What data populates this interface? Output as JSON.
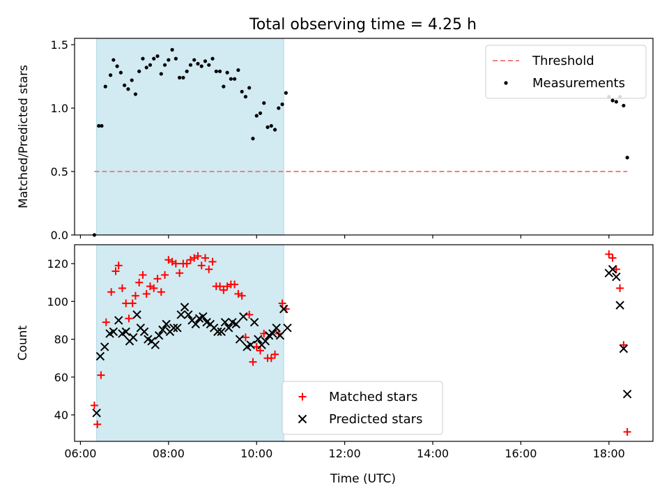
{
  "chart_data": {
    "title": "Total observing time = 4.25 h",
    "xlabel": "Time (UTC)",
    "x_ticks": [
      "06:00",
      "08:00",
      "10:00",
      "12:00",
      "14:00",
      "16:00",
      "18:00"
    ],
    "xlim": [
      "05:52",
      "19:00"
    ],
    "shaded_interval": {
      "start": "06:22",
      "end": "10:37",
      "color": "#add8e6"
    },
    "panels": [
      {
        "type": "scatter",
        "ylabel": "Matched/Predicted stars",
        "ylim": [
          0,
          1.55
        ],
        "y_ticks": [
          "0.0",
          "0.5",
          "1.0",
          "1.5"
        ],
        "legend_position": "top-right",
        "threshold": {
          "name": "Threshold",
          "value": 0.5,
          "x_start": "06:19",
          "x_end": "18:25",
          "color": "#f08080",
          "style": "dashed"
        },
        "series": [
          {
            "name": "Measurements",
            "color": "#000000",
            "marker": "dot",
            "points": [
              [
                "06:19",
                0.0
              ],
              [
                "06:25",
                0.86
              ],
              [
                "06:29",
                0.86
              ],
              [
                "06:34",
                1.17
              ],
              [
                "06:41",
                1.26
              ],
              [
                "06:45",
                1.38
              ],
              [
                "06:50",
                1.33
              ],
              [
                "06:55",
                1.28
              ],
              [
                "07:00",
                1.18
              ],
              [
                "07:05",
                1.15
              ],
              [
                "07:10",
                1.22
              ],
              [
                "07:15",
                1.11
              ],
              [
                "07:20",
                1.29
              ],
              [
                "07:25",
                1.39
              ],
              [
                "07:30",
                1.32
              ],
              [
                "07:35",
                1.34
              ],
              [
                "07:40",
                1.39
              ],
              [
                "07:45",
                1.41
              ],
              [
                "07:50",
                1.27
              ],
              [
                "07:55",
                1.34
              ],
              [
                "08:00",
                1.38
              ],
              [
                "08:05",
                1.46
              ],
              [
                "08:10",
                1.39
              ],
              [
                "08:15",
                1.24
              ],
              [
                "08:20",
                1.24
              ],
              [
                "08:25",
                1.29
              ],
              [
                "08:30",
                1.34
              ],
              [
                "08:35",
                1.38
              ],
              [
                "08:40",
                1.35
              ],
              [
                "08:45",
                1.33
              ],
              [
                "08:50",
                1.37
              ],
              [
                "08:55",
                1.34
              ],
              [
                "09:00",
                1.39
              ],
              [
                "09:05",
                1.29
              ],
              [
                "09:10",
                1.29
              ],
              [
                "09:15",
                1.17
              ],
              [
                "09:20",
                1.28
              ],
              [
                "09:25",
                1.23
              ],
              [
                "09:30",
                1.23
              ],
              [
                "09:35",
                1.3
              ],
              [
                "09:40",
                1.13
              ],
              [
                "09:45",
                1.09
              ],
              [
                "09:50",
                1.16
              ],
              [
                "09:55",
                0.76
              ],
              [
                "10:00",
                0.94
              ],
              [
                "10:05",
                0.96
              ],
              [
                "10:10",
                1.04
              ],
              [
                "10:15",
                0.85
              ],
              [
                "10:20",
                0.86
              ],
              [
                "10:25",
                0.83
              ],
              [
                "10:30",
                1.0
              ],
              [
                "10:35",
                1.03
              ],
              [
                "10:40",
                1.12
              ],
              [
                "18:00",
                1.09
              ],
              [
                "18:05",
                1.06
              ],
              [
                "18:10",
                1.05
              ],
              [
                "18:15",
                1.09
              ],
              [
                "18:20",
                1.02
              ],
              [
                "18:25",
                0.61
              ]
            ]
          }
        ]
      },
      {
        "type": "scatter",
        "ylabel": "Count",
        "ylim": [
          26,
          130
        ],
        "y_ticks": [
          "40",
          "60",
          "80",
          "100",
          "120"
        ],
        "legend_position": "lower-center",
        "series": [
          {
            "name": "Matched stars",
            "color": "#ff0000",
            "marker": "plus",
            "points": [
              [
                "06:19",
                45
              ],
              [
                "06:23",
                35
              ],
              [
                "06:28",
                61
              ],
              [
                "06:35",
                89
              ],
              [
                "06:42",
                105
              ],
              [
                "06:48",
                116
              ],
              [
                "06:52",
                119
              ],
              [
                "06:57",
                107
              ],
              [
                "07:02",
                99
              ],
              [
                "07:06",
                91
              ],
              [
                "07:11",
                99
              ],
              [
                "07:15",
                103
              ],
              [
                "07:20",
                110
              ],
              [
                "07:25",
                114
              ],
              [
                "07:30",
                104
              ],
              [
                "07:35",
                108
              ],
              [
                "07:40",
                107
              ],
              [
                "07:45",
                112
              ],
              [
                "07:50",
                105
              ],
              [
                "07:55",
                114
              ],
              [
                "08:00",
                122
              ],
              [
                "08:05",
                121
              ],
              [
                "08:10",
                120
              ],
              [
                "08:15",
                115
              ],
              [
                "08:20",
                120
              ],
              [
                "08:25",
                120
              ],
              [
                "08:30",
                122
              ],
              [
                "08:35",
                123
              ],
              [
                "08:40",
                124
              ],
              [
                "08:45",
                119
              ],
              [
                "08:50",
                123
              ],
              [
                "08:55",
                117
              ],
              [
                "09:00",
                121
              ],
              [
                "09:05",
                108
              ],
              [
                "09:10",
                108
              ],
              [
                "09:15",
                106
              ],
              [
                "09:20",
                108
              ],
              [
                "09:25",
                109
              ],
              [
                "09:30",
                109
              ],
              [
                "09:35",
                104
              ],
              [
                "09:40",
                103
              ],
              [
                "09:45",
                81
              ],
              [
                "09:50",
                93
              ],
              [
                "09:55",
                68
              ],
              [
                "10:00",
                76
              ],
              [
                "10:05",
                74
              ],
              [
                "10:10",
                83
              ],
              [
                "10:15",
                70
              ],
              [
                "10:20",
                70
              ],
              [
                "10:25",
                72
              ],
              [
                "10:30",
                83
              ],
              [
                "10:35",
                99
              ],
              [
                "10:40",
                96
              ],
              [
                "18:00",
                125
              ],
              [
                "18:05",
                123
              ],
              [
                "18:10",
                117
              ],
              [
                "18:15",
                107
              ],
              [
                "18:20",
                77
              ],
              [
                "18:25",
                31
              ]
            ]
          },
          {
            "name": "Predicted stars",
            "color": "#000000",
            "marker": "x",
            "points": [
              [
                "06:22",
                41
              ],
              [
                "06:27",
                71
              ],
              [
                "06:33",
                76
              ],
              [
                "06:40",
                83
              ],
              [
                "06:45",
                84
              ],
              [
                "06:52",
                90
              ],
              [
                "06:57",
                83
              ],
              [
                "07:02",
                84
              ],
              [
                "07:07",
                79
              ],
              [
                "07:12",
                81
              ],
              [
                "07:17",
                93
              ],
              [
                "07:22",
                86
              ],
              [
                "07:27",
                84
              ],
              [
                "07:32",
                80
              ],
              [
                "07:37",
                79
              ],
              [
                "07:42",
                77
              ],
              [
                "07:47",
                82
              ],
              [
                "07:52",
                85
              ],
              [
                "07:57",
                88
              ],
              [
                "08:02",
                84
              ],
              [
                "08:07",
                86
              ],
              [
                "08:12",
                86
              ],
              [
                "08:17",
                93
              ],
              [
                "08:22",
                97
              ],
              [
                "08:27",
                93
              ],
              [
                "08:32",
                90
              ],
              [
                "08:37",
                88
              ],
              [
                "08:42",
                91
              ],
              [
                "08:47",
                92
              ],
              [
                "08:52",
                89
              ],
              [
                "08:57",
                88
              ],
              [
                "09:02",
                86
              ],
              [
                "09:07",
                84
              ],
              [
                "09:12",
                84
              ],
              [
                "09:17",
                89
              ],
              [
                "09:22",
                86
              ],
              [
                "09:27",
                89
              ],
              [
                "09:32",
                88
              ],
              [
                "09:37",
                80
              ],
              [
                "09:42",
                92
              ],
              [
                "09:47",
                76
              ],
              [
                "09:52",
                77
              ],
              [
                "09:57",
                89
              ],
              [
                "10:02",
                80
              ],
              [
                "10:07",
                77
              ],
              [
                "10:12",
                79
              ],
              [
                "10:17",
                82
              ],
              [
                "10:22",
                83
              ],
              [
                "10:27",
                86
              ],
              [
                "10:32",
                82
              ],
              [
                "10:37",
                96
              ],
              [
                "10:42",
                86
              ],
              [
                "18:00",
                115
              ],
              [
                "18:05",
                117
              ],
              [
                "18:10",
                113
              ],
              [
                "18:15",
                98
              ],
              [
                "18:20",
                75
              ],
              [
                "18:25",
                51
              ]
            ]
          }
        ]
      }
    ]
  }
}
